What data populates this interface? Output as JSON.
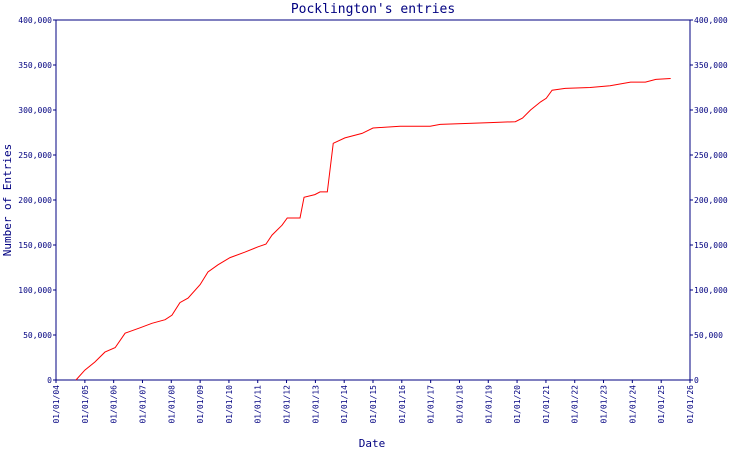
{
  "chart_data": {
    "type": "line",
    "title": "Pocklington's entries",
    "xlabel": "Date",
    "ylabel": "Number of Entries",
    "axis_color": "#000080",
    "grid": false,
    "xlim": [
      "01/01/04",
      "01/01/26"
    ],
    "xticks": [
      "01/01/04",
      "01/01/05",
      "01/01/06",
      "01/01/07",
      "01/01/08",
      "01/01/09",
      "01/01/10",
      "01/01/11",
      "01/01/12",
      "01/01/13",
      "01/01/14",
      "01/01/15",
      "01/01/16",
      "01/01/17",
      "01/01/18",
      "01/01/19",
      "01/01/20",
      "01/01/21",
      "01/01/22",
      "01/01/23",
      "01/01/24",
      "01/01/25",
      "01/01/26"
    ],
    "ylim": [
      0,
      400000
    ],
    "yticks": [
      0,
      {
        "value": 50000,
        "label": "50,000"
      },
      {
        "value": 100000,
        "label": "100,000"
      },
      {
        "value": 150000,
        "label": "150,000"
      },
      {
        "value": 200000,
        "label": "200,000"
      },
      {
        "value": 250000,
        "label": "250,000"
      },
      {
        "value": 300000,
        "label": "300,000"
      },
      {
        "value": 350000,
        "label": "350,000"
      },
      {
        "value": 400000,
        "label": "400,000"
      }
    ],
    "y2lim": [
      0,
      400000
    ],
    "y2ticks": [
      0,
      {
        "value": 50000,
        "label": "50,000"
      },
      {
        "value": 100000,
        "label": "100,000"
      },
      {
        "value": 150000,
        "label": "150,000"
      },
      {
        "value": 200000,
        "label": "200,000"
      },
      {
        "value": 250000,
        "label": "250,000"
      },
      {
        "value": 300000,
        "label": "300,000"
      },
      {
        "value": 350000,
        "label": "350,000"
      },
      {
        "value": 400000,
        "label": "400,000"
      }
    ],
    "x": [
      "10/09/04",
      "01/01/05",
      "08/05/05",
      "12/09/05",
      "20/01/06",
      "26/05/06",
      "01/12/06",
      "01/05/07",
      "15/10/07",
      "10/01/08",
      "20/04/08",
      "01/08/08",
      "01/01/09",
      "10/04/09",
      "15/08/09",
      "15/01/10",
      "20/07/10",
      "05/01/11",
      "15/04/11",
      "01/07/11",
      "05/11/11",
      "10/01/12",
      "20/06/12",
      "10/08/12",
      "25/12/12",
      "01/03/13",
      "01/06/13",
      "15/08/13",
      "10/01/14",
      "15/08/14",
      "01/01/15",
      "10/12/15",
      "25/12/16",
      "01/05/17",
      "25/01/19",
      "10/12/19",
      "10/03/20",
      "20/06/20",
      "25/10/20",
      "05/01/21",
      "20/03/21",
      "01/09/21",
      "15/07/22",
      "25/03/23",
      "10/12/23",
      "15/06/24",
      "25/10/24",
      "01/05/25"
    ],
    "series": [
      {
        "color": "#ff0000",
        "values": [
          0,
          11000,
          20000,
          31000,
          36000,
          52000,
          58000,
          63000,
          67000,
          72000,
          86000,
          91000,
          106000,
          120000,
          128000,
          136000,
          142000,
          148000,
          151000,
          161000,
          172000,
          180000,
          180000,
          203000,
          206000,
          209000,
          209000,
          263000,
          269000,
          274000,
          280000,
          282000,
          282000,
          284000,
          286000,
          287000,
          291000,
          300000,
          309000,
          313000,
          322000,
          324000,
          325000,
          327000,
          331000,
          331000,
          334000,
          335000
        ]
      }
    ]
  }
}
